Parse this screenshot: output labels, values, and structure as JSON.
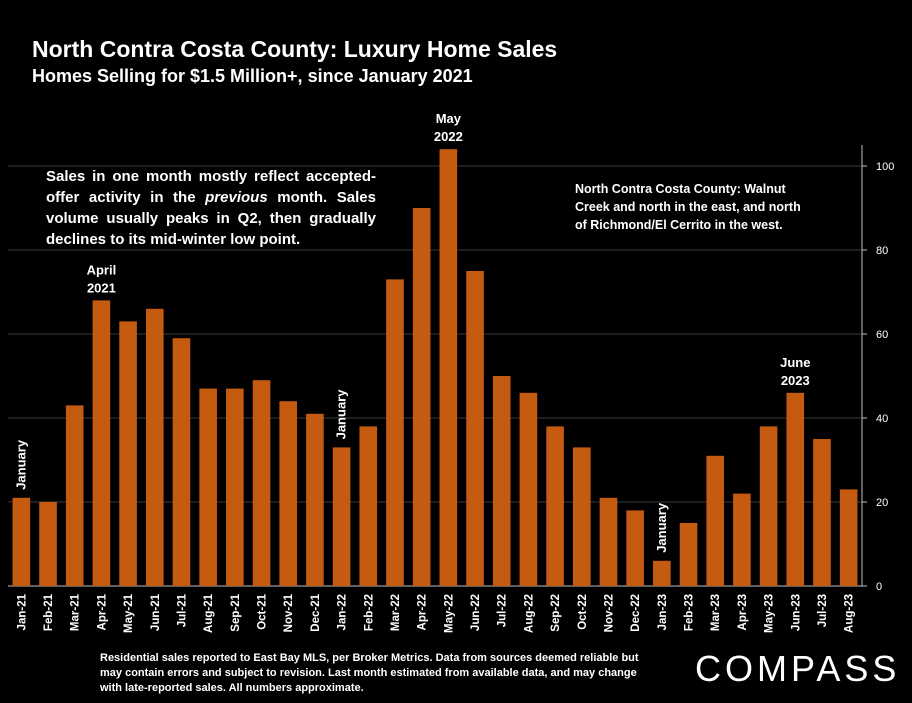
{
  "header": {
    "title": "North Contra Costa County: Luxury Home Sales",
    "subtitle": "Homes Selling for $1.5 Million+, since January 2021"
  },
  "notes": {
    "left_before": "Sales in one month mostly reflect accepted-offer activity in the ",
    "left_italic": "previous",
    "left_after": " month. Sales volume usually peaks in Q2, then gradually declines to its mid-winter low point.",
    "right": "North Contra Costa County: Walnut Creek and north in the east, and north of Richmond/El Cerrito in the west."
  },
  "footer": {
    "text": "Residential sales reported to East Bay MLS, per Broker Metrics. Data from sources deemed reliable but may contain errors and subject to revision.  Last month estimated from available data, and may change with late-reported sales. All numbers approximate.",
    "logo": "COMPASS"
  },
  "colors": {
    "bar": "#c55a11",
    "background": "#000000",
    "grid": "#3a3a3a",
    "text": "#ffffff"
  },
  "chart_data": {
    "type": "bar",
    "title": "North Contra Costa County: Luxury Home Sales",
    "subtitle": "Homes Selling for $1.5 Million+, since January 2021",
    "categories": [
      "Jan-21",
      "Feb-21",
      "Mar-21",
      "Apr-21",
      "May-21",
      "Jun-21",
      "Jul-21",
      "Aug-21",
      "Sep-21",
      "Oct-21",
      "Nov-21",
      "Dec-21",
      "Jan-22",
      "Feb-22",
      "Mar-22",
      "Apr-22",
      "May-22",
      "Jun-22",
      "Jul-22",
      "Aug-22",
      "Sep-22",
      "Oct-22",
      "Nov-22",
      "Dec-22",
      "Jan-23",
      "Feb-23",
      "Mar-23",
      "Apr-23",
      "May-23",
      "Jun-23",
      "Jul-23",
      "Aug-23"
    ],
    "values": [
      21,
      20,
      43,
      68,
      63,
      66,
      59,
      47,
      47,
      49,
      44,
      41,
      33,
      38,
      73,
      90,
      104,
      75,
      50,
      46,
      38,
      33,
      21,
      18,
      6,
      15,
      31,
      22,
      38,
      46,
      35,
      23
    ],
    "ylim": [
      0,
      105
    ],
    "yticks": [
      0,
      20,
      40,
      60,
      80,
      100
    ],
    "y_axis_side": "right",
    "grid": true,
    "annotations": [
      {
        "index": 0,
        "lines": [
          "January"
        ],
        "vertical": true
      },
      {
        "index": 3,
        "lines": [
          "April",
          "2021"
        ],
        "vertical": false
      },
      {
        "index": 12,
        "lines": [
          "January"
        ],
        "vertical": true
      },
      {
        "index": 16,
        "lines": [
          "May",
          "2022"
        ],
        "vertical": false
      },
      {
        "index": 24,
        "lines": [
          "January"
        ],
        "vertical": true
      },
      {
        "index": 29,
        "lines": [
          "June",
          "2023"
        ],
        "vertical": false
      }
    ]
  }
}
